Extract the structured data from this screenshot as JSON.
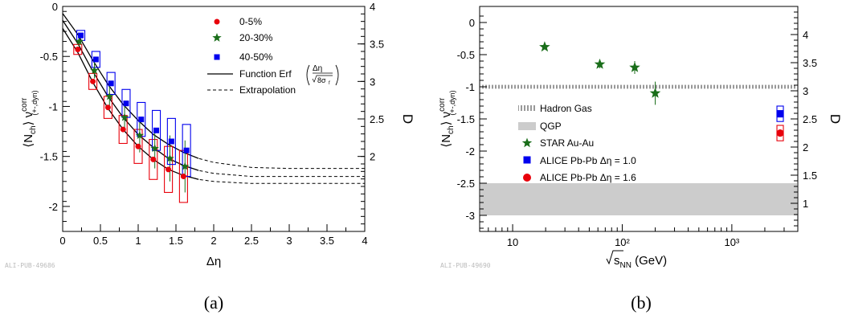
{
  "chart_data": [
    {
      "type": "scatter",
      "caption": "(a)",
      "watermark": "ALI-PUB-49686",
      "xlabel": "Δη",
      "ylabel": "⟨N_ch⟩ ν^corr_(+-,dyn)",
      "y2label": "D",
      "xlim": [
        0,
        4
      ],
      "ylim": [
        -2.25,
        0
      ],
      "y2lim": [
        1,
        4
      ],
      "x_ticks": [
        "0",
        "0.5",
        "1",
        "1.5",
        "2",
        "2.5",
        "3",
        "3.5",
        "4"
      ],
      "y_ticks": [
        "0",
        "-0.5",
        "-1",
        "-1.5",
        "-2"
      ],
      "y2_ticks": [
        "4",
        "3.5",
        "3",
        "2.5",
        "2"
      ],
      "legend": [
        "0-5%",
        "20-30%",
        "40-50%",
        "Function Erf",
        "Extrapolation"
      ],
      "series": [
        {
          "name": "0-5%",
          "color": "#e8000b",
          "marker": "circle",
          "x": [
            0.2,
            0.4,
            0.6,
            0.8,
            1.0,
            1.2,
            1.4,
            1.6
          ],
          "y": [
            -0.43,
            -0.75,
            -1.01,
            -1.23,
            -1.4,
            -1.53,
            -1.63,
            -1.7
          ]
        },
        {
          "name": "20-30%",
          "color": "#1a6e1a",
          "marker": "star",
          "x": [
            0.22,
            0.42,
            0.62,
            0.82,
            1.02,
            1.22,
            1.42,
            1.62
          ],
          "y": [
            -0.35,
            -0.64,
            -0.9,
            -1.11,
            -1.29,
            -1.42,
            -1.52,
            -1.6
          ]
        },
        {
          "name": "40-50%",
          "color": "#0000ee",
          "marker": "square",
          "x": [
            0.24,
            0.44,
            0.64,
            0.84,
            1.04,
            1.24,
            1.44,
            1.64
          ],
          "y": [
            -0.29,
            -0.53,
            -0.77,
            -0.97,
            -1.13,
            -1.24,
            -1.35,
            -1.44
          ]
        }
      ],
      "fits": [
        {
          "asymptote": -1.77,
          "x": [
            0.0,
            0.2,
            0.4,
            0.6,
            0.8,
            1.0,
            1.2,
            1.4,
            1.6,
            1.8,
            2.0,
            2.5,
            3.0,
            3.5,
            4.0
          ],
          "y": [
            -0.22,
            -0.46,
            -0.76,
            -1.02,
            -1.23,
            -1.4,
            -1.53,
            -1.63,
            -1.69,
            -1.73,
            -1.75,
            -1.77,
            -1.77,
            -1.77,
            -1.77
          ]
        },
        {
          "asymptote": -1.7,
          "x": [
            0.0,
            0.2,
            0.4,
            0.6,
            0.8,
            1.0,
            1.2,
            1.4,
            1.6,
            1.8,
            2.0,
            2.5,
            3.0,
            3.5,
            4.0
          ],
          "y": [
            -0.14,
            -0.37,
            -0.65,
            -0.9,
            -1.11,
            -1.28,
            -1.41,
            -1.52,
            -1.59,
            -1.64,
            -1.67,
            -1.7,
            -1.7,
            -1.7,
            -1.7
          ]
        },
        {
          "asymptote": -1.62,
          "x": [
            0.0,
            0.2,
            0.4,
            0.6,
            0.8,
            1.0,
            1.2,
            1.4,
            1.6,
            1.8,
            2.0,
            2.5,
            3.0,
            3.5,
            4.0
          ],
          "y": [
            -0.07,
            -0.28,
            -0.54,
            -0.78,
            -0.98,
            -1.14,
            -1.28,
            -1.38,
            -1.46,
            -1.52,
            -1.56,
            -1.61,
            -1.62,
            -1.62,
            -1.62
          ]
        }
      ],
      "fit_solid_until": 1.7
    },
    {
      "type": "scatter",
      "caption": "(b)",
      "watermark": "ALI-PUB-49690",
      "xlabel": "√s_NN (GeV)",
      "xscale": "log",
      "ylabel": "⟨N_ch⟩ ν^corr_(+-,dyn)",
      "y2label": "D",
      "xlim": [
        5,
        4000
      ],
      "ylim": [
        -3.25,
        0.25
      ],
      "y2lim": [
        0.5,
        4.5
      ],
      "x_ticks": [
        "10",
        "10²",
        "10³"
      ],
      "y_ticks": [
        "0",
        "-0.5",
        "-1",
        "-1.5",
        "-2",
        "-2.5",
        "-3"
      ],
      "y2_ticks": [
        "4",
        "3.5",
        "3",
        "2.5",
        "2",
        "1.5",
        "1"
      ],
      "legend": [
        "Hadron Gas",
        "QGP",
        "STAR Au-Au",
        "ALICE Pb-Pb Δη = 1.0",
        "ALICE Pb-Pb Δη = 1.6"
      ],
      "bands": [
        {
          "name": "Hadron Gas",
          "y": [
            -1.03,
            -0.97
          ],
          "style": "hatched",
          "color": "#999999"
        },
        {
          "name": "QGP",
          "y": [
            -3.0,
            -2.5
          ],
          "style": "solid",
          "color": "#cccccc"
        }
      ],
      "series": [
        {
          "name": "STAR Au-Au",
          "color": "#1a6e1a",
          "marker": "star",
          "x": [
            19.6,
            62.4,
            130,
            200
          ],
          "y": [
            -0.38,
            -0.65,
            -0.7,
            -1.1
          ],
          "yerr": [
            0.03,
            0.06,
            0.1,
            0.18
          ]
        },
        {
          "name": "ALICE Pb-Pb Δη = 1.0",
          "color": "#0000ee",
          "marker": "square",
          "x": [
            2760
          ],
          "y": [
            -1.42
          ]
        },
        {
          "name": "ALICE Pb-Pb Δη = 1.6",
          "color": "#e8000b",
          "marker": "circle",
          "x": [
            2760
          ],
          "y": [
            -1.72
          ]
        }
      ]
    }
  ]
}
